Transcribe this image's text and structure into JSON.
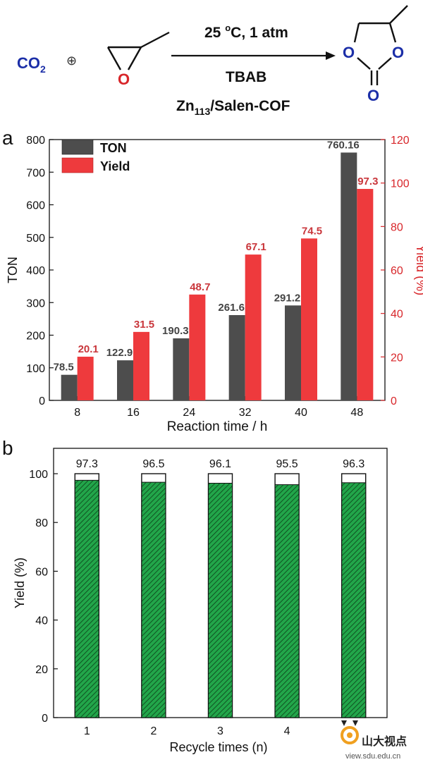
{
  "scheme": {
    "reactant_co2": "CO",
    "reactant_co2_sub": "2",
    "plus": "⊕",
    "epoxide_o": "O",
    "condition_top": "25 ",
    "condition_top_sup": "o",
    "condition_top_rest": "C, 1 atm",
    "condition_mid": "TBAB",
    "catalyst_main": "Zn",
    "catalyst_sub": "113",
    "catalyst_rest": "/Salen-COF",
    "product_o_ring_left": "O",
    "product_o_ring_right": "O",
    "product_o_carbonyl": "O",
    "colors": {
      "blue": "#1c2fa8",
      "red": "#d8262a",
      "black": "#111111"
    }
  },
  "watermark": {
    "text": "山大视点",
    "url": "view.sdu.edu.cn"
  },
  "chart_data": [
    {
      "panel_label": "a",
      "type": "bar",
      "categories": [
        "8",
        "16",
        "24",
        "32",
        "40",
        "48"
      ],
      "xlabel": "Reaction time / h",
      "series": [
        {
          "name": "TON",
          "axis": "left",
          "color": "#4d4d4d",
          "values": [
            78.5,
            122.9,
            190.3,
            261.6,
            291.2,
            760.16
          ],
          "labels": [
            "78.5",
            "122.9",
            "190.3",
            "261.6",
            "291.2",
            "760.16"
          ]
        },
        {
          "name": "Yield",
          "axis": "right",
          "color": "#ee3a3d",
          "label_color": "#c9363b",
          "values": [
            20.1,
            31.5,
            48.7,
            67.1,
            74.5,
            97.3
          ],
          "labels": [
            "20.1",
            "31.5",
            "48.7",
            "67.1",
            "74.5",
            "97.3"
          ]
        }
      ],
      "ylabel_left": "TON",
      "ylim_left": [
        0,
        800
      ],
      "yticks_left": [
        "0",
        "100",
        "200",
        "300",
        "400",
        "500",
        "600",
        "700",
        "800"
      ],
      "ylabel_right": "Yield (%)",
      "ylim_right": [
        0,
        120
      ],
      "yticks_right": [
        "0",
        "20",
        "40",
        "60",
        "80",
        "100",
        "120"
      ],
      "right_axis_color": "#d8262a",
      "legend_position": "top-left",
      "grid": false
    },
    {
      "panel_label": "b",
      "type": "bar",
      "categories": [
        "1",
        "2",
        "3",
        "4",
        "5"
      ],
      "xlabel": "Recycle times (n)",
      "series": [
        {
          "name": "",
          "color": "#22a64a",
          "values": [
            97.3,
            96.5,
            96.1,
            95.5,
            96.3
          ],
          "labels": [
            "97.3",
            "96.5",
            "96.1",
            "95.5",
            "96.3"
          ]
        }
      ],
      "outline_top": 100,
      "ylabel": "Yield (%)",
      "ylim": [
        0,
        100
      ],
      "yticks": [
        "0",
        "20",
        "40",
        "60",
        "80",
        "100"
      ],
      "legend_position": "none",
      "grid": false
    }
  ]
}
